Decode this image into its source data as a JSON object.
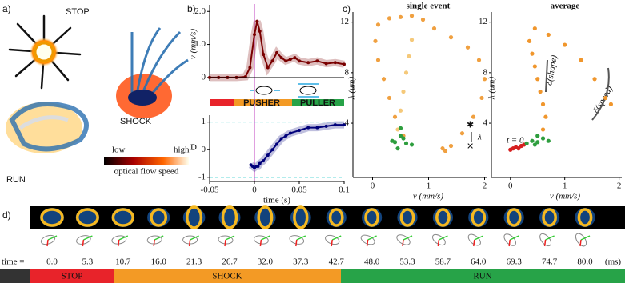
{
  "figure": {
    "a": {
      "label": "a)",
      "stop": "STOP",
      "run": "RUN",
      "shock": "SHOCK",
      "colorbar_low": "low",
      "colorbar_high": "high",
      "colorbar_title": "optical flow speed"
    },
    "b": {
      "label": "b)",
      "velocity": {
        "type": "line",
        "ylabel": "v (mm/s)",
        "color": "#7a0000",
        "x": [
          -0.05,
          -0.04,
          -0.03,
          -0.02,
          -0.01,
          -0.005,
          0,
          0.003,
          0.006,
          0.01,
          0.015,
          0.02,
          0.025,
          0.03,
          0.035,
          0.04,
          0.045,
          0.05,
          0.06,
          0.07,
          0.08,
          0.09,
          0.1
        ],
        "values": [
          0,
          0,
          0,
          0,
          0.02,
          0.3,
          1.3,
          1.7,
          1.4,
          0.7,
          0.3,
          0.5,
          0.75,
          0.6,
          0.5,
          0.55,
          0.6,
          0.5,
          0.45,
          0.5,
          0.42,
          0.45,
          0.4
        ],
        "xlim": [
          -0.05,
          0.1
        ],
        "ylim": [
          -0.1,
          2.2
        ],
        "yticks": [
          0,
          {
            "value": 1,
            "label": "1.0"
          },
          {
            "value": 2,
            "label": "2.0"
          }
        ]
      },
      "modes": {
        "pusher": "PUSHER",
        "puller": "PULLER"
      },
      "dipole": {
        "type": "line",
        "ylabel": "D",
        "xlabel": "time (s)",
        "color": "#00007a",
        "x": [
          -0.004,
          -0.002,
          0,
          0.002,
          0.004,
          0.006,
          0.01,
          0.015,
          0.02,
          0.025,
          0.03,
          0.035,
          0.04,
          0.05,
          0.06,
          0.07,
          0.08,
          0.09,
          0.1
        ],
        "values": [
          -0.55,
          -0.6,
          -0.65,
          -0.6,
          -0.6,
          -0.5,
          -0.4,
          -0.2,
          0,
          0.2,
          0.4,
          0.5,
          0.6,
          0.7,
          0.8,
          0.8,
          0.85,
          0.9,
          0.9
        ],
        "xlim": [
          -0.05,
          0.1
        ],
        "ylim": [
          -1.15,
          1.25
        ],
        "yticks": [
          -1,
          0,
          1
        ],
        "xticks": [
          -0.05,
          0,
          0.05,
          0.1
        ]
      }
    },
    "c": {
      "label": "c)",
      "lambda": "λ",
      "single": {
        "type": "scatter",
        "title": "single event",
        "xlabel": "v (mm/s)",
        "ylabel": "λ (μm)",
        "xlim": [
          -0.35,
          2.05
        ],
        "ylim": [
          -0.3,
          12.8
        ],
        "xticks": [
          0,
          1,
          2
        ],
        "yticks": [
          4,
          8,
          12
        ],
        "series": [
          {
            "color": "#f5c97a",
            "x": [
              0.45,
              0.5,
              0.55,
              0.6,
              0.65,
              0.7
            ],
            "values": [
              3.5,
              5,
              6.5,
              8,
              9.3,
              10.6
            ]
          },
          {
            "color": "#f0a040",
            "x": [
              0.55,
              0.4,
              0.3,
              0.2,
              0.1,
              0.05,
              0.1,
              0.3,
              0.5,
              0.7,
              0.9,
              1.1,
              1.4,
              1.7,
              1.9,
              2.0,
              1.95,
              1.8,
              1.6,
              1.4,
              1.3,
              1.25
            ],
            "values": [
              3.0,
              4.5,
              6,
              7.5,
              9,
              10.5,
              11.8,
              12.3,
              12.4,
              12.5,
              12.2,
              11.5,
              10.8,
              10,
              9,
              7.5,
              6,
              4.5,
              3.2,
              2.2,
              1.8,
              2.0
            ]
          },
          {
            "color": "#2e9e3e",
            "x": [
              0.4,
              0.5,
              0.6,
              0.5,
              0.45,
              0.55,
              0.7,
              0.35
            ],
            "values": [
              2.5,
              3,
              2.4,
              3.6,
              2.0,
              2.8,
              2.3,
              2.6
            ]
          }
        ]
      },
      "average": {
        "type": "scatter",
        "title": "average",
        "xlabel": "v (mm/s)",
        "ylabel": "λ (μm)",
        "xlim": [
          -0.35,
          2.05
        ],
        "ylim": [
          -0.3,
          12.8
        ],
        "xticks": [
          0,
          1,
          2
        ],
        "yticks": [
          4,
          8,
          12
        ],
        "annotations": {
          "shape": "δ(shape)",
          "speed": "δ(speed)",
          "start": "t = 0"
        },
        "series": [
          {
            "color": "#d62020",
            "x": [
              0.0,
              0.05,
              0.1,
              0.15,
              0.2,
              0.25
            ],
            "values": [
              1.9,
              2.0,
              2.1,
              2.0,
              2.2,
              2.3
            ]
          },
          {
            "color": "#f0962c",
            "x": [
              0.6,
              0.65,
              0.6,
              0.55,
              0.5,
              0.45,
              0.4,
              0.35,
              0.45,
              0.7,
              1.0,
              1.3,
              1.55,
              1.75,
              1.85
            ],
            "values": [
              3.5,
              4.5,
              5.5,
              6.5,
              7.5,
              8.5,
              9.5,
              10.5,
              11.5,
              11.0,
              10.2,
              9.0,
              7.5,
              6.0,
              5.5
            ]
          },
          {
            "color": "#2e9e3e",
            "x": [
              0.3,
              0.4,
              0.5,
              0.6,
              0.5,
              0.45,
              0.7
            ],
            "values": [
              2.4,
              2.6,
              2.5,
              2.8,
              3.0,
              2.3,
              2.6
            ]
          }
        ]
      }
    },
    "d": {
      "label": "d)",
      "time_prefix": "time =",
      "times": [
        "0.0",
        "5.3",
        "10.7",
        "16.0",
        "21.3",
        "26.7",
        "32.0",
        "37.3",
        "42.7",
        "48.0",
        "53.3",
        "58.7",
        "64.0",
        "69.3",
        "74.7",
        "80.0"
      ],
      "unit": "(ms)",
      "phases": [
        "STOP",
        "SHOCK",
        "RUN"
      ]
    }
  }
}
